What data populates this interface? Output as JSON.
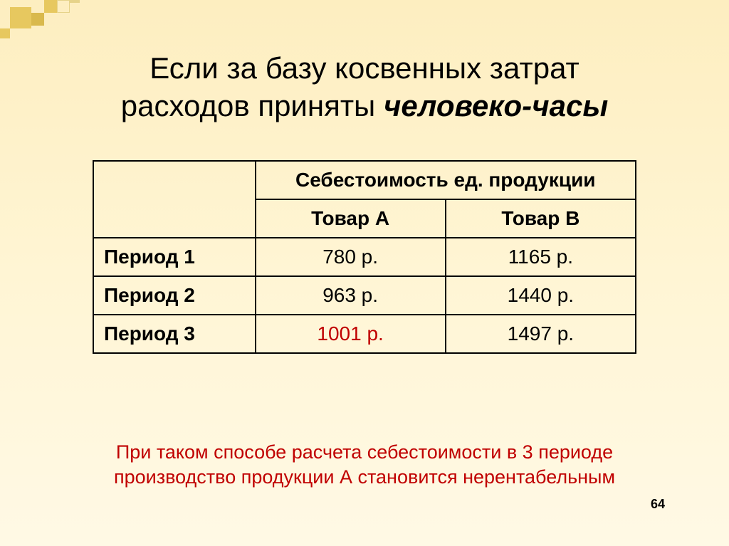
{
  "title": {
    "line1": "Если за базу косвенных затрат",
    "line2_plain": "расходов приняты ",
    "line2_em": "человеко-часы"
  },
  "table": {
    "header_span": "Себестоимость ед. продукции",
    "col_a": "Товар А",
    "col_b": "Товар В",
    "rows": [
      {
        "label": "Период 1",
        "a": "780 р.",
        "b": "1165 р.",
        "a_highlight": false
      },
      {
        "label": "Период 2",
        "a": "963 р.",
        "b": "1440 р.",
        "a_highlight": false
      },
      {
        "label": "Период 3",
        "a": "1001 р.",
        "b": "1497 р.",
        "a_highlight": true
      }
    ]
  },
  "footer": {
    "line1": "При таком способе расчета себестоимости в 3 периоде",
    "line2": "производство продукции А становится нерентабельным"
  },
  "pagenum": "64",
  "colors": {
    "highlight": "#c00000",
    "text": "#000000",
    "bg_top": "#fdeec0",
    "bg_bottom": "#fff9e5",
    "deco": "#e7c85f"
  },
  "font": {
    "family": "Arial",
    "title_size": 42,
    "cell_size": 28,
    "footer_size": 27
  }
}
